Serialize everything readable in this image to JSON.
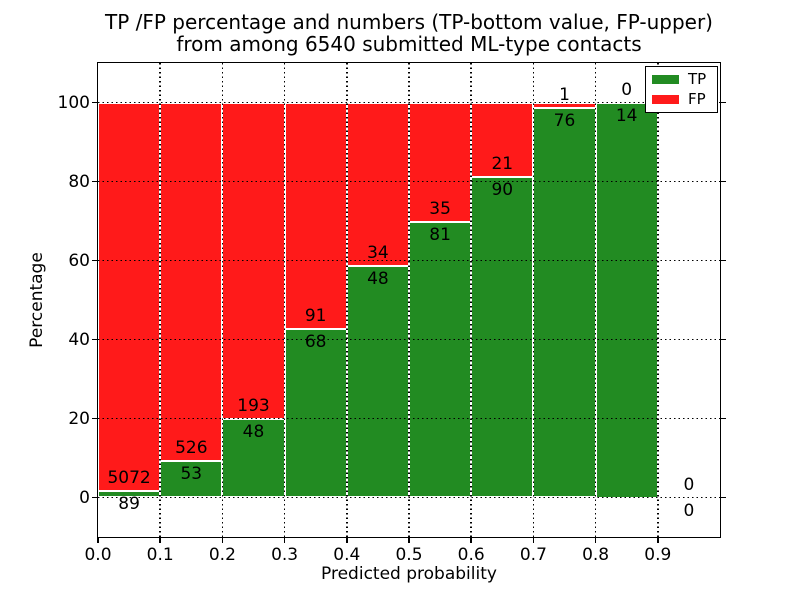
{
  "figure": {
    "title_line1": "TP /FP percentage and numbers (TP-bottom value, FP-upper)",
    "title_line2": "from among 6540 submitted ML-type contacts"
  },
  "chart_data": {
    "type": "bar",
    "stacked": true,
    "normalized": "percent of bin total",
    "title": "TP /FP percentage and numbers (TP-bottom value, FP-upper)\nfrom among 6540 submitted ML-type contacts",
    "xlabel": "Predicted probability",
    "ylabel": "Percentage",
    "total_contacts": 6540,
    "xlim": [
      0.0,
      1.0
    ],
    "ylim": [
      -10,
      110
    ],
    "bin_width": 0.1,
    "grid": "dotted, drawn above bars",
    "x_ticks": [
      "0.0",
      "0.1",
      "0.2",
      "0.3",
      "0.4",
      "0.5",
      "0.6",
      "0.7",
      "0.8",
      "0.9"
    ],
    "y_ticks": [
      0,
      20,
      40,
      60,
      80,
      100
    ],
    "tp_color": "#228B22",
    "fp_color": "#FF1A1A",
    "legend": {
      "position": "upper right",
      "entries": [
        {
          "label": "TP",
          "color": "#228B22"
        },
        {
          "label": "FP",
          "color": "#FF1A1A"
        }
      ]
    },
    "bins": [
      {
        "x_start": 0.0,
        "tp": 89,
        "fp": 5072,
        "tp_pct": 1.7
      },
      {
        "x_start": 0.1,
        "tp": 53,
        "fp": 526,
        "tp_pct": 9.2
      },
      {
        "x_start": 0.2,
        "tp": 48,
        "fp": 193,
        "tp_pct": 19.9
      },
      {
        "x_start": 0.3,
        "tp": 68,
        "fp": 91,
        "tp_pct": 42.8
      },
      {
        "x_start": 0.4,
        "tp": 48,
        "fp": 34,
        "tp_pct": 58.5
      },
      {
        "x_start": 0.5,
        "tp": 81,
        "fp": 35,
        "tp_pct": 69.8
      },
      {
        "x_start": 0.6,
        "tp": 90,
        "fp": 21,
        "tp_pct": 81.1
      },
      {
        "x_start": 0.7,
        "tp": 76,
        "fp": 1,
        "tp_pct": 98.7
      },
      {
        "x_start": 0.8,
        "tp": 14,
        "fp": 0,
        "tp_pct": 100.0
      },
      {
        "x_start": 0.9,
        "tp": 0,
        "fp": 0,
        "tp_pct": 0.0
      }
    ]
  }
}
